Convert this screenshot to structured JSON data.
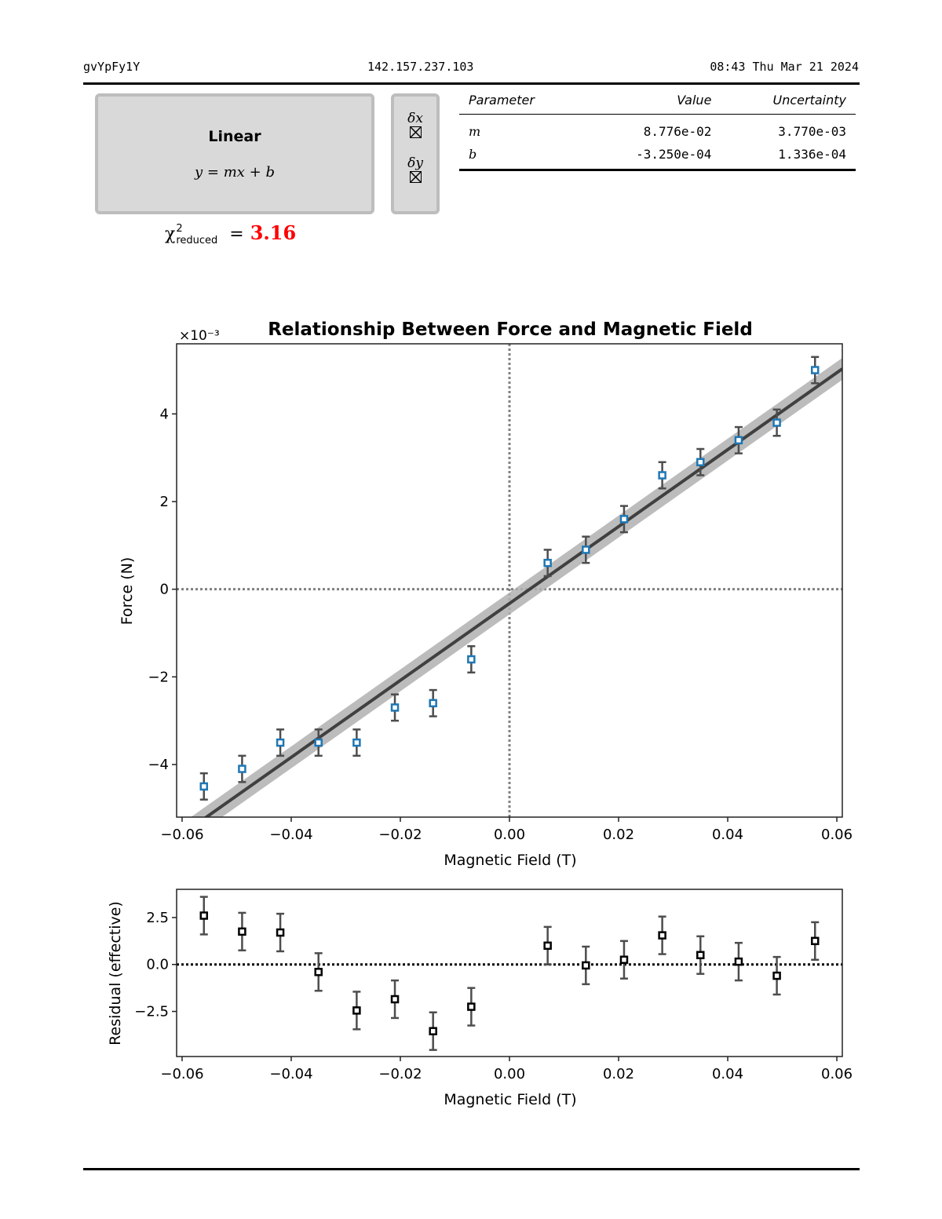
{
  "header": {
    "id": "gvYpFy1Y",
    "ip": "142.157.237.103",
    "datetime": "08:43 Thu Mar 21 2024"
  },
  "model": {
    "name": "Linear",
    "equation": "y = mx + b"
  },
  "error_toggles": [
    {
      "label": "δx",
      "checked": true
    },
    {
      "label": "δy",
      "checked": true
    }
  ],
  "chi_squared": {
    "label": "χ²reduced =",
    "symbol": "χ",
    "sup": "2",
    "sub": "reduced",
    "value": "3.16",
    "value_color": "#ff0000"
  },
  "params_table": {
    "headers": [
      "Parameter",
      "Value",
      "Uncertainty"
    ],
    "rows": [
      {
        "param": "m",
        "value": "8.776e-02",
        "uncertainty": "3.770e-03"
      },
      {
        "param": "b",
        "value": "-3.250e-04",
        "uncertainty": "1.336e-04"
      }
    ]
  },
  "chart_data": [
    {
      "type": "scatter",
      "title": "Relationship Between Force and Magnetic Field",
      "xlabel": "Magnetic Field (T)",
      "ylabel": "Force (N)",
      "y_scale_label": "×10⁻³",
      "xlim": [
        -0.061,
        0.061
      ],
      "ylim": [
        -5.2,
        5.6
      ],
      "y_multiplier": 0.001,
      "xticks": [
        -0.06,
        -0.04,
        -0.02,
        0.0,
        0.02,
        0.04,
        0.06
      ],
      "xtick_labels": [
        "−0.06",
        "−0.04",
        "−0.02",
        "0.00",
        "0.02",
        "0.04",
        "0.06"
      ],
      "yticks": [
        -4,
        -2,
        0,
        2,
        4
      ],
      "ytick_labels": [
        "−4",
        "−2",
        "0",
        "2",
        "4"
      ],
      "grid": false,
      "reference_lines": {
        "x": 0,
        "y": 0,
        "style": "dotted",
        "color": "#808080"
      },
      "fit": {
        "m": 0.08776,
        "b": -0.000325,
        "band_halfwidth_e3": 0.25,
        "line_color": "#404040",
        "band_color": "#b0b0b0"
      },
      "marker_color": "#1f77b4",
      "errorbar_color": "#4d4d4d",
      "series": [
        {
          "name": "data",
          "x": [
            -0.056,
            -0.049,
            -0.042,
            -0.035,
            -0.028,
            -0.021,
            -0.014,
            -0.007,
            0.007,
            0.014,
            0.021,
            0.028,
            0.035,
            0.042,
            0.049,
            0.056
          ],
          "y": [
            -4.5,
            -4.1,
            -3.5,
            -3.5,
            -3.5,
            -2.7,
            -2.6,
            -1.6,
            0.6,
            0.9,
            1.6,
            2.6,
            2.9,
            3.4,
            3.8,
            5.0
          ],
          "yerr": [
            0.3,
            0.3,
            0.3,
            0.3,
            0.3,
            0.3,
            0.3,
            0.3,
            0.3,
            0.3,
            0.3,
            0.3,
            0.3,
            0.3,
            0.3,
            0.3
          ]
        }
      ]
    },
    {
      "type": "scatter",
      "title": "",
      "xlabel": "Magnetic Field (T)",
      "ylabel": "Residual (effective)",
      "xlim": [
        -0.061,
        0.061
      ],
      "ylim": [
        -4.9,
        4.0
      ],
      "xticks": [
        -0.06,
        -0.04,
        -0.02,
        0.0,
        0.02,
        0.04,
        0.06
      ],
      "xtick_labels": [
        "−0.06",
        "−0.04",
        "−0.02",
        "0.00",
        "0.02",
        "0.04",
        "0.06"
      ],
      "yticks": [
        -2.5,
        0.0,
        2.5
      ],
      "ytick_labels": [
        "−2.5",
        "0.0",
        "2.5"
      ],
      "grid": false,
      "reference_lines": {
        "y": 0,
        "style": "dotted",
        "color": "#000000"
      },
      "marker_color": "#000000",
      "errorbar_color": "#4d4d4d",
      "series": [
        {
          "name": "residuals",
          "x": [
            -0.056,
            -0.049,
            -0.042,
            -0.035,
            -0.028,
            -0.021,
            -0.014,
            -0.007,
            0.007,
            0.014,
            0.021,
            0.028,
            0.035,
            0.042,
            0.049,
            0.056
          ],
          "y": [
            2.6,
            1.75,
            1.7,
            -0.4,
            -2.45,
            -1.85,
            -3.55,
            -2.25,
            1.0,
            -0.05,
            0.25,
            1.55,
            0.5,
            0.15,
            -0.6,
            1.25
          ],
          "yerr": [
            1.0,
            1.0,
            1.0,
            1.0,
            1.0,
            1.0,
            1.0,
            1.0,
            1.0,
            1.0,
            1.0,
            1.0,
            1.0,
            1.0,
            1.0,
            1.0
          ]
        }
      ]
    }
  ]
}
